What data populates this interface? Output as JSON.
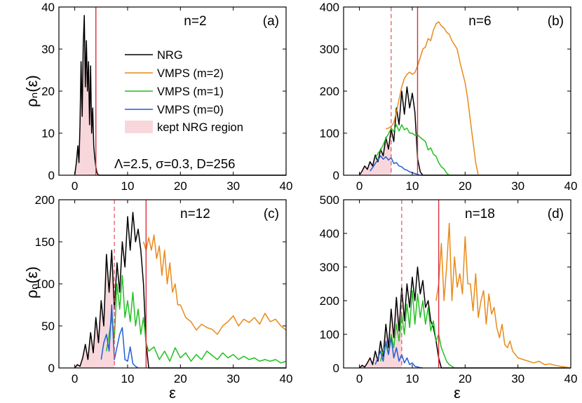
{
  "figure": {
    "ylabel": "ρₙ(ε)",
    "xlabel": "ε",
    "legend": [
      {
        "label": "NRG",
        "color": "#000000",
        "kind": "line"
      },
      {
        "label": "VMPS (m=2)",
        "color": "#e88a1a",
        "kind": "line"
      },
      {
        "label": "VMPS (m=1)",
        "color": "#22c022",
        "kind": "line"
      },
      {
        "label": "VMPS (m=0)",
        "color": "#1f5fd6",
        "kind": "line"
      },
      {
        "label": "kept NRG region",
        "color": "#f8d7dc",
        "kind": "patch"
      }
    ],
    "params": "Λ=2.5, σ=0.3, D=256"
  },
  "chart_data": [
    {
      "type": "line",
      "panel": "(a)",
      "n_label": "n=2",
      "xlim": [
        -3,
        40
      ],
      "ylim": [
        0,
        40
      ],
      "xticks": [
        0,
        10,
        20,
        30,
        40
      ],
      "yticks": [
        0,
        10,
        20,
        30,
        40
      ],
      "kept_region_end": 4,
      "solid_line_x": 4,
      "dashed_line_x": null,
      "series": [
        {
          "name": "NRG",
          "color": "#000000",
          "x": [
            0,
            0.3,
            0.6,
            0.8,
            1.0,
            1.2,
            1.4,
            1.6,
            1.8,
            2.0,
            2.2,
            2.4,
            2.6,
            2.8,
            3.0,
            3.2,
            3.4,
            3.6,
            3.8,
            4.0,
            4.2,
            4.5,
            5,
            40
          ],
          "y": [
            0,
            3,
            7,
            3,
            12,
            27,
            14,
            31,
            38,
            21,
            32,
            20,
            27,
            12,
            26,
            10,
            16,
            7,
            4,
            2,
            0.6,
            0,
            0,
            0
          ]
        }
      ]
    },
    {
      "type": "line",
      "panel": "(b)",
      "n_label": "n=6",
      "xlim": [
        -3,
        40
      ],
      "ylim": [
        0,
        400
      ],
      "xticks": [
        0,
        10,
        20,
        30,
        40
      ],
      "yticks": [
        0,
        100,
        200,
        300,
        400
      ],
      "kept_region_end": 6,
      "solid_line_x": 11,
      "dashed_line_x": 6,
      "series": [
        {
          "name": "NRG",
          "color": "#000000",
          "x": [
            0,
            0.5,
            1,
            1.5,
            2,
            2.5,
            3,
            3.5,
            4,
            4.5,
            5,
            5.5,
            6,
            6.5,
            7,
            7.5,
            8,
            8.5,
            9,
            9.5,
            10,
            10.5,
            11,
            11.5,
            12,
            40
          ],
          "y": [
            0,
            10,
            22,
            14,
            32,
            22,
            48,
            32,
            62,
            46,
            90,
            62,
            110,
            80,
            160,
            120,
            200,
            145,
            210,
            160,
            195,
            150,
            40,
            8,
            0,
            0
          ]
        },
        {
          "name": "VMPS (m=2)",
          "color": "#e88a1a",
          "x": [
            5,
            5.5,
            6,
            6.5,
            7,
            7.5,
            8,
            8.5,
            9,
            9.5,
            10,
            10.5,
            11,
            11.5,
            12,
            12.5,
            13,
            13.5,
            14,
            14.5,
            15,
            15.5,
            16,
            16.5,
            17,
            17.5,
            18,
            18.5,
            19,
            19.5,
            20,
            20.5,
            21,
            21.5,
            22,
            22.5,
            23
          ],
          "y": [
            110,
            112,
            116,
            125,
            150,
            180,
            210,
            230,
            240,
            245,
            240,
            244,
            260,
            280,
            300,
            305,
            325,
            320,
            345,
            360,
            365,
            355,
            350,
            340,
            335,
            320,
            310,
            300,
            270,
            245,
            220,
            180,
            130,
            80,
            30,
            0,
            0
          ]
        },
        {
          "name": "VMPS (m=1)",
          "color": "#22c022",
          "x": [
            3,
            3.5,
            4,
            4.5,
            5,
            5.5,
            6,
            6.5,
            7,
            7.5,
            8,
            8.5,
            9,
            9.5,
            10,
            10.5,
            11,
            11.5,
            12,
            12.5,
            13,
            13.5,
            14,
            14.5,
            15,
            15.5,
            16,
            16.5,
            17
          ],
          "y": [
            40,
            52,
            60,
            72,
            88,
            98,
            112,
            104,
            120,
            105,
            120,
            108,
            112,
            100,
            100,
            95,
            96,
            90,
            85,
            80,
            60,
            65,
            50,
            45,
            30,
            20,
            15,
            5,
            0
          ]
        },
        {
          "name": "VMPS (m=0)",
          "color": "#1f5fd6",
          "x": [
            2,
            2.5,
            3,
            3.5,
            4,
            4.5,
            5,
            5.5,
            6,
            6.5,
            7,
            7.5,
            8,
            8.5,
            9,
            9.5,
            10,
            10.5,
            11,
            11.5,
            12
          ],
          "y": [
            10,
            18,
            28,
            36,
            46,
            38,
            44,
            36,
            42,
            28,
            30,
            22,
            20,
            14,
            12,
            8,
            6,
            4,
            2,
            0,
            0
          ]
        }
      ]
    },
    {
      "type": "line",
      "panel": "(c)",
      "n_label": "n=12",
      "xlim": [
        -3,
        40
      ],
      "ylim": [
        0,
        200
      ],
      "xticks": [
        0,
        10,
        20,
        30,
        40
      ],
      "yticks": [
        0,
        50,
        100,
        150,
        200
      ],
      "kept_region_end": 7.5,
      "solid_line_x": 13.5,
      "dashed_line_x": 7.5,
      "series": [
        {
          "name": "NRG",
          "color": "#000000",
          "x": [
            0,
            0.5,
            1,
            1.5,
            2,
            2.5,
            3,
            3.5,
            4,
            4.5,
            5,
            5.5,
            6,
            6.5,
            7,
            7.5,
            8,
            8.5,
            9,
            9.5,
            10,
            10.5,
            11,
            11.5,
            12,
            12.5,
            13,
            13.5,
            14,
            40
          ],
          "y": [
            0,
            4,
            2,
            12,
            28,
            10,
            42,
            18,
            60,
            30,
            80,
            50,
            135,
            90,
            140,
            70,
            125,
            90,
            150,
            120,
            180,
            140,
            185,
            150,
            165,
            140,
            100,
            30,
            0,
            0
          ]
        },
        {
          "name": "VMPS (m=2)",
          "color": "#e88a1a",
          "x": [
            13,
            13.5,
            14,
            14.5,
            15,
            15.5,
            16,
            16.5,
            17,
            17.5,
            18,
            18.5,
            19,
            19.5,
            20,
            21,
            22,
            23,
            24,
            25,
            26,
            27,
            28,
            29,
            30,
            31,
            32,
            33,
            34,
            35,
            36,
            37,
            38,
            39,
            40
          ],
          "y": [
            150,
            140,
            155,
            140,
            158,
            130,
            145,
            110,
            140,
            100,
            125,
            90,
            100,
            75,
            75,
            60,
            55,
            45,
            52,
            48,
            46,
            40,
            50,
            55,
            62,
            50,
            58,
            54,
            60,
            52,
            65,
            55,
            58,
            50,
            45
          ]
        },
        {
          "name": "VMPS (m=1)",
          "color": "#22c022",
          "x": [
            6,
            6.5,
            7,
            7.5,
            8,
            8.5,
            9,
            9.5,
            10,
            10.5,
            11,
            11.5,
            12,
            12.5,
            13,
            13.5,
            14,
            15,
            16,
            17,
            18,
            19,
            20,
            21,
            22,
            23,
            24,
            25,
            26,
            27,
            28,
            29,
            30,
            31,
            32,
            33,
            34,
            35,
            36,
            37,
            38,
            39,
            40
          ],
          "y": [
            20,
            40,
            60,
            35,
            100,
            70,
            110,
            60,
            80,
            55,
            90,
            50,
            70,
            40,
            60,
            30,
            20,
            25,
            10,
            20,
            8,
            24,
            12,
            18,
            8,
            16,
            10,
            20,
            15,
            10,
            18,
            12,
            16,
            10,
            14,
            10,
            12,
            8,
            10,
            8,
            10,
            6,
            8
          ]
        },
        {
          "name": "VMPS (m=0)",
          "color": "#1f5fd6",
          "x": [
            5,
            5.5,
            6,
            6.5,
            7,
            7.5,
            8,
            8.5,
            9,
            9.5,
            10,
            10.5,
            11,
            11.5,
            12
          ],
          "y": [
            10,
            30,
            40,
            20,
            75,
            10,
            25,
            40,
            48,
            10,
            8,
            25,
            5,
            2,
            0
          ]
        }
      ]
    },
    {
      "type": "line",
      "panel": "(d)",
      "n_label": "n=18",
      "xlim": [
        -3,
        40
      ],
      "ylim": [
        0,
        500
      ],
      "xticks": [
        0,
        10,
        20,
        30,
        40
      ],
      "yticks": [
        0,
        100,
        200,
        300,
        400,
        500
      ],
      "kept_region_end": 8,
      "solid_line_x": 15,
      "dashed_line_x": 8,
      "series": [
        {
          "name": "NRG",
          "color": "#000000",
          "x": [
            0,
            0.5,
            1,
            1.5,
            2,
            2.5,
            3,
            3.5,
            4,
            4.5,
            5,
            5.5,
            6,
            6.5,
            7,
            7.5,
            8,
            8.5,
            9,
            9.5,
            10,
            10.5,
            11,
            11.5,
            12,
            12.5,
            13,
            13.5,
            14,
            14.5,
            15,
            15.5,
            16,
            40
          ],
          "y": [
            0,
            8,
            3,
            15,
            30,
            10,
            50,
            20,
            80,
            35,
            130,
            60,
            175,
            90,
            210,
            110,
            240,
            140,
            250,
            180,
            270,
            200,
            300,
            220,
            260,
            180,
            200,
            140,
            120,
            80,
            30,
            0,
            0,
            0
          ]
        },
        {
          "name": "VMPS (m=2)",
          "color": "#e88a1a",
          "x": [
            14.5,
            15,
            15.5,
            16,
            16.5,
            17,
            17.5,
            18,
            18.5,
            19,
            19.5,
            20,
            20.5,
            21,
            21.5,
            22,
            22.5,
            23,
            23.5,
            24,
            24.5,
            25,
            25.5,
            26,
            26.5,
            27,
            27.5,
            28,
            28.5,
            29,
            29.5,
            30,
            31,
            32,
            33,
            34,
            35,
            36,
            37,
            38,
            39,
            40
          ],
          "y": [
            200,
            250,
            370,
            200,
            300,
            430,
            200,
            330,
            240,
            280,
            220,
            390,
            250,
            250,
            170,
            280,
            150,
            200,
            230,
            130,
            220,
            160,
            180,
            120,
            90,
            130,
            70,
            60,
            80,
            50,
            40,
            30,
            25,
            20,
            15,
            20,
            10,
            12,
            8,
            5,
            3,
            0
          ]
        },
        {
          "name": "VMPS (m=1)",
          "color": "#22c022",
          "x": [
            4,
            4.5,
            5,
            5.5,
            6,
            6.5,
            7,
            7.5,
            8,
            8.5,
            9,
            9.5,
            10,
            10.5,
            11,
            11.5,
            12,
            12.5,
            13,
            13.5,
            14,
            14.5,
            15,
            15.5,
            16,
            16.5,
            17,
            17.5,
            18
          ],
          "y": [
            20,
            50,
            70,
            40,
            100,
            60,
            130,
            80,
            160,
            100,
            190,
            120,
            230,
            130,
            220,
            150,
            200,
            130,
            180,
            110,
            140,
            80,
            100,
            60,
            40,
            20,
            10,
            5,
            0
          ]
        },
        {
          "name": "VMPS (m=0)",
          "color": "#1f5fd6",
          "x": [
            3,
            3.5,
            4,
            4.5,
            5,
            5.5,
            6,
            6.5,
            7,
            7.5,
            8,
            8.5,
            9,
            9.5,
            10,
            10.5,
            11,
            11.5,
            12
          ],
          "y": [
            10,
            30,
            50,
            20,
            80,
            40,
            90,
            30,
            60,
            20,
            40,
            15,
            30,
            10,
            15,
            5,
            3,
            1,
            0
          ]
        }
      ]
    }
  ]
}
